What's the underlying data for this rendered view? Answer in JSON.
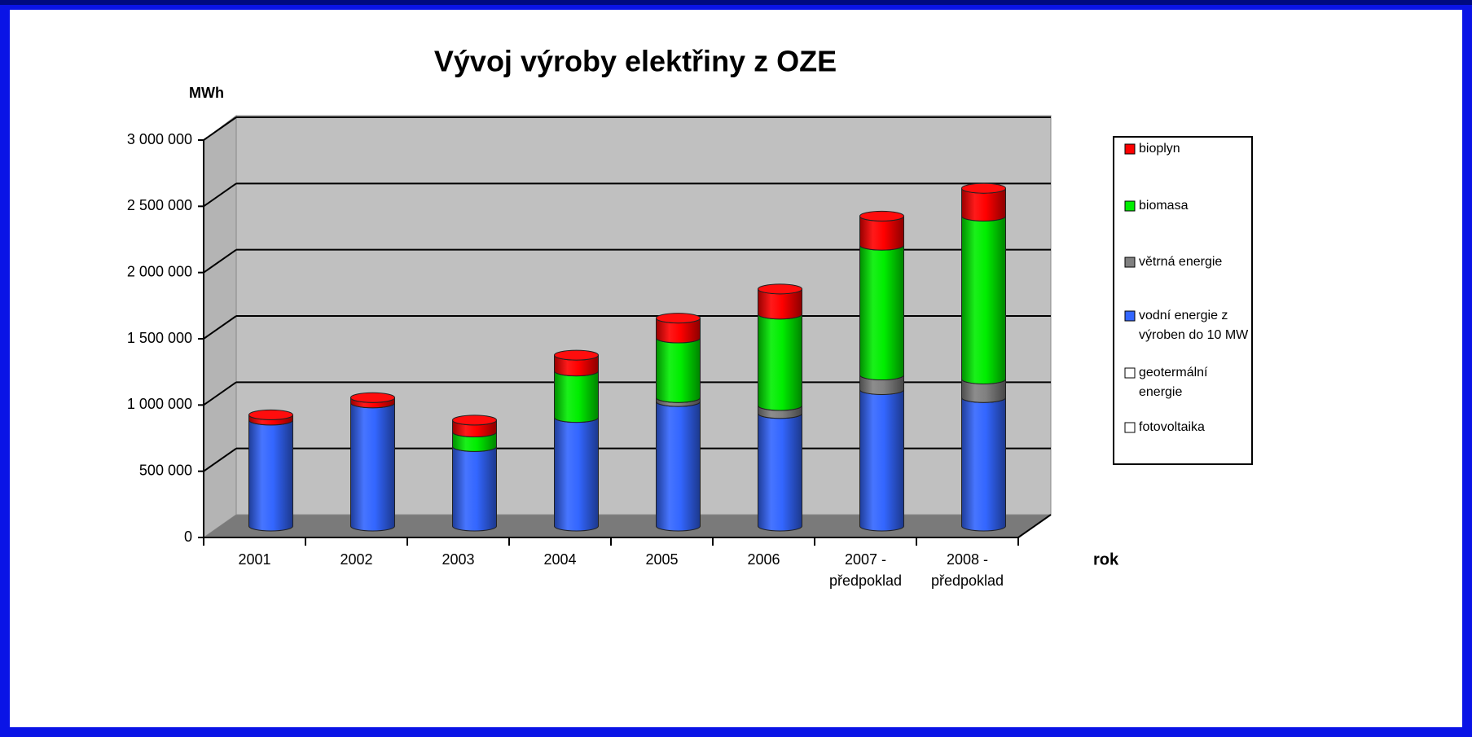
{
  "chart_data": {
    "type": "bar3d_stacked_cylinder",
    "title": "Vývoj výroby elektřiny z OZE",
    "y_label": "MWh",
    "x_label": "rok",
    "categories": [
      "2001",
      "2002",
      "2003",
      "2004",
      "2005",
      "2006",
      "2007 - předpoklad",
      "2008 - předpoklad"
    ],
    "series": [
      {
        "name": "bioplyn",
        "color": "#ff0000",
        "values": [
          40000,
          40000,
          90000,
          120000,
          150000,
          190000,
          220000,
          210000
        ]
      },
      {
        "name": "biomasa",
        "color": "#00ee00",
        "values": [
          0,
          0,
          110000,
          350000,
          450000,
          690000,
          980000,
          1230000
        ]
      },
      {
        "name": "větrná energie",
        "color": "#808080",
        "values": [
          0,
          0,
          0,
          0,
          30000,
          60000,
          110000,
          140000
        ]
      },
      {
        "name": "vodní energie z výroben do 10 MW",
        "color": "#3366ff",
        "values": [
          800000,
          930000,
          600000,
          820000,
          940000,
          850000,
          1030000,
          970000
        ]
      },
      {
        "name": "geotermální energie",
        "color": "#ffffff",
        "values": [
          0,
          0,
          0,
          0,
          0,
          0,
          0,
          0
        ]
      },
      {
        "name": "fotovoltaika",
        "color": "#ffffff",
        "values": [
          0,
          0,
          0,
          0,
          0,
          0,
          0,
          0
        ]
      }
    ],
    "ylim": [
      0,
      3000000
    ],
    "yticks": [
      0,
      {
        "value": 500000,
        "label": "500 000"
      },
      {
        "value": 1000000,
        "label": "1 000 000"
      },
      {
        "value": 1500000,
        "label": "1 500 000"
      },
      {
        "value": 2000000,
        "label": "2 000 000"
      },
      {
        "value": 2500000,
        "label": "2 500 000"
      },
      {
        "value": 3000000,
        "label": "3 000 000"
      }
    ],
    "grid": true,
    "legend": "right"
  }
}
